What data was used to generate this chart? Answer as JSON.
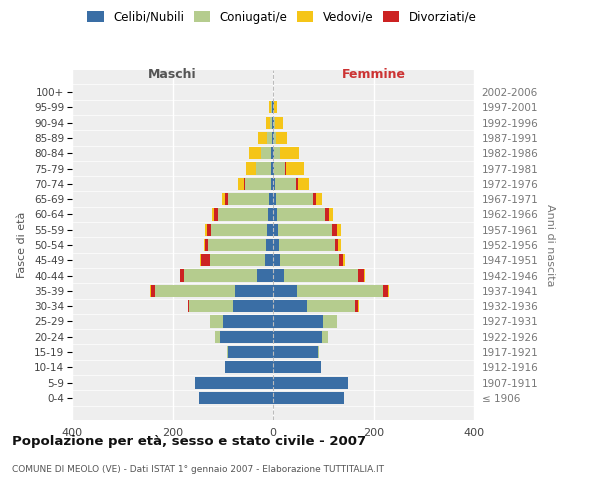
{
  "age_groups": [
    "100+",
    "95-99",
    "90-94",
    "85-89",
    "80-84",
    "75-79",
    "70-74",
    "65-69",
    "60-64",
    "55-59",
    "50-54",
    "45-49",
    "40-44",
    "35-39",
    "30-34",
    "25-29",
    "20-24",
    "15-19",
    "10-14",
    "5-9",
    "0-4"
  ],
  "birth_years": [
    "≤ 1906",
    "1907-1911",
    "1912-1916",
    "1917-1921",
    "1922-1926",
    "1927-1931",
    "1932-1936",
    "1937-1941",
    "1942-1946",
    "1947-1951",
    "1952-1956",
    "1957-1961",
    "1962-1966",
    "1967-1971",
    "1972-1976",
    "1977-1981",
    "1982-1986",
    "1987-1991",
    "1992-1996",
    "1997-2001",
    "2002-2006"
  ],
  "colors": {
    "celibi": "#3a6ea5",
    "coniugati": "#b5cc8e",
    "vedovi": "#f5c518",
    "divorziati": "#cc2222"
  },
  "males": {
    "celibi": [
      0,
      1,
      1,
      2,
      3,
      3,
      4,
      8,
      10,
      12,
      14,
      16,
      32,
      75,
      80,
      100,
      105,
      90,
      95,
      155,
      148
    ],
    "coniugati": [
      0,
      2,
      5,
      10,
      20,
      30,
      52,
      82,
      100,
      112,
      115,
      110,
      145,
      160,
      88,
      25,
      10,
      2,
      1,
      0,
      0
    ],
    "vedovi": [
      0,
      4,
      8,
      18,
      25,
      20,
      12,
      5,
      4,
      4,
      2,
      2,
      1,
      1,
      0,
      0,
      0,
      0,
      0,
      0,
      0
    ],
    "divorziati": [
      0,
      0,
      0,
      0,
      0,
      1,
      2,
      6,
      8,
      8,
      6,
      18,
      8,
      8,
      2,
      0,
      0,
      0,
      0,
      0,
      0
    ]
  },
  "females": {
    "nubili": [
      0,
      1,
      1,
      1,
      2,
      2,
      3,
      5,
      8,
      10,
      12,
      14,
      22,
      48,
      68,
      100,
      98,
      90,
      95,
      150,
      142
    ],
    "coniugati": [
      0,
      1,
      3,
      5,
      12,
      22,
      42,
      75,
      95,
      108,
      112,
      118,
      148,
      170,
      96,
      28,
      12,
      2,
      0,
      0,
      0
    ],
    "vedove": [
      0,
      6,
      15,
      22,
      38,
      35,
      22,
      12,
      8,
      8,
      5,
      4,
      2,
      2,
      2,
      0,
      0,
      0,
      0,
      0,
      0
    ],
    "divorziate": [
      0,
      0,
      0,
      0,
      0,
      2,
      5,
      6,
      8,
      10,
      6,
      8,
      12,
      10,
      5,
      0,
      0,
      0,
      0,
      0,
      0
    ]
  },
  "xlim": 400,
  "title": "Popolazione per età, sesso e stato civile - 2007",
  "subtitle": "COMUNE DI MEOLO (VE) - Dati ISTAT 1° gennaio 2007 - Elaborazione TUTTITALIA.IT",
  "ylabel_left": "Fasce di età",
  "ylabel_right": "Anni di nascita",
  "xlabel_left": "Maschi",
  "xlabel_right": "Femmine",
  "legend_labels": [
    "Celibi/Nubili",
    "Coniugati/e",
    "Vedovi/e",
    "Divorziati/e"
  ],
  "bg_color": "#eeeeee",
  "label_color": "#555555",
  "femmine_color": "#cc3333"
}
